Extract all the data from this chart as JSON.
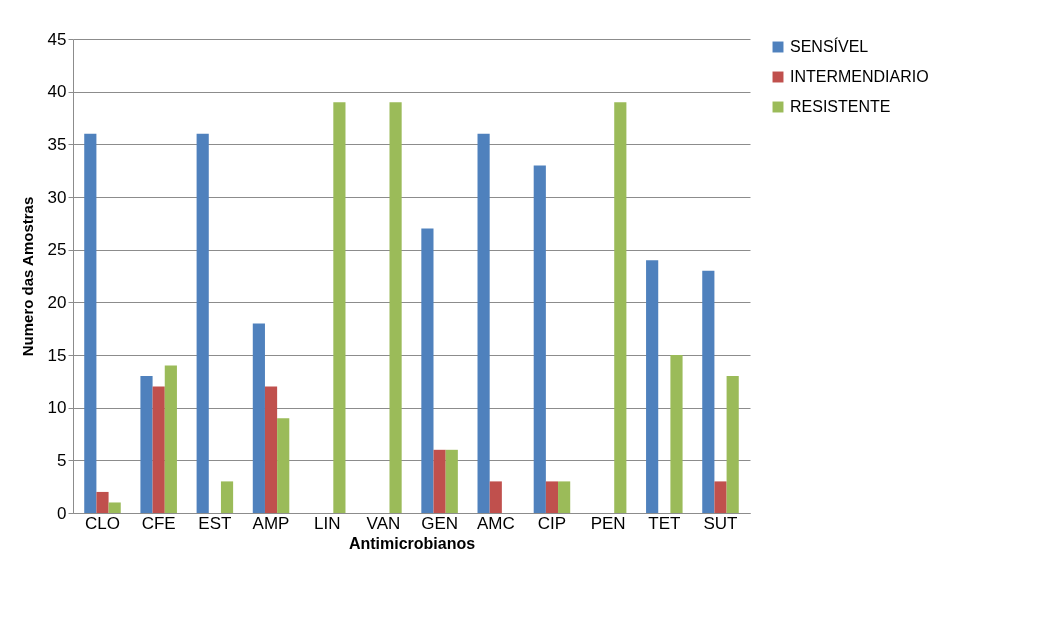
{
  "chart_data": {
    "type": "bar",
    "xlabel": "Antimicrobianos",
    "ylabel": "Numero das Amostras",
    "categories": [
      "CLO",
      "CFE",
      "EST",
      "AMP",
      "LIN",
      "VAN",
      "GEN",
      "AMC",
      "CIP",
      "PEN",
      "TET",
      "SUT"
    ],
    "series": [
      {
        "name": "SENSÍVEL",
        "color": "#4f81bd",
        "values": [
          36,
          13,
          36,
          18,
          0,
          0,
          27,
          36,
          33,
          0,
          24,
          23
        ]
      },
      {
        "name": "INTERMENDIARIO",
        "color": "#c0504d",
        "values": [
          2,
          12,
          0,
          12,
          0,
          0,
          6,
          3,
          3,
          0,
          0,
          3
        ]
      },
      {
        "name": "RESISTENTE",
        "color": "#9bbb59",
        "values": [
          1,
          14,
          3,
          9,
          39,
          39,
          6,
          0,
          3,
          39,
          15,
          13
        ]
      }
    ],
    "ylim": [
      0,
      45
    ],
    "yticks": [
      0,
      5,
      10,
      15,
      20,
      25,
      30,
      35,
      40,
      45
    ],
    "grid": "y",
    "legend": "right"
  }
}
